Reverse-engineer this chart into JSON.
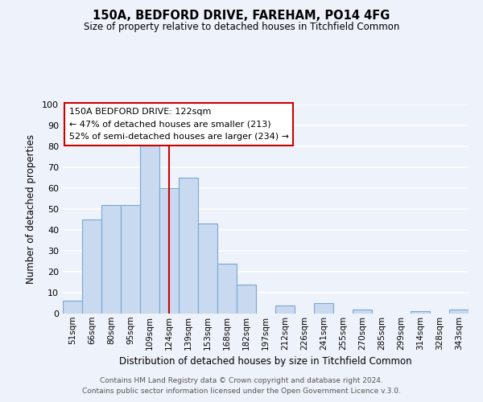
{
  "title": "150A, BEDFORD DRIVE, FAREHAM, PO14 4FG",
  "subtitle": "Size of property relative to detached houses in Titchfield Common",
  "xlabel": "Distribution of detached houses by size in Titchfield Common",
  "ylabel": "Number of detached properties",
  "bar_labels": [
    "51sqm",
    "66sqm",
    "80sqm",
    "95sqm",
    "109sqm",
    "124sqm",
    "139sqm",
    "153sqm",
    "168sqm",
    "182sqm",
    "197sqm",
    "212sqm",
    "226sqm",
    "241sqm",
    "255sqm",
    "270sqm",
    "285sqm",
    "299sqm",
    "314sqm",
    "328sqm",
    "343sqm"
  ],
  "bar_values": [
    6,
    45,
    52,
    52,
    81,
    60,
    65,
    43,
    24,
    14,
    0,
    4,
    0,
    5,
    0,
    2,
    0,
    0,
    1,
    0,
    2
  ],
  "bar_color": "#c8d9f0",
  "bar_edge_color": "#7aa8d4",
  "vline_x": 5.0,
  "vline_color": "#cc0000",
  "ylim": [
    0,
    100
  ],
  "yticks": [
    0,
    10,
    20,
    30,
    40,
    50,
    60,
    70,
    80,
    90,
    100
  ],
  "annotation_title": "150A BEDFORD DRIVE: 122sqm",
  "annotation_line1": "← 47% of detached houses are smaller (213)",
  "annotation_line2": "52% of semi-detached houses are larger (234) →",
  "annotation_box_color": "#ffffff",
  "annotation_box_edge": "#cc0000",
  "footer_line1": "Contains HM Land Registry data © Crown copyright and database right 2024.",
  "footer_line2": "Contains public sector information licensed under the Open Government Licence v.3.0.",
  "background_color": "#eef2fa",
  "grid_color": "#ffffff"
}
